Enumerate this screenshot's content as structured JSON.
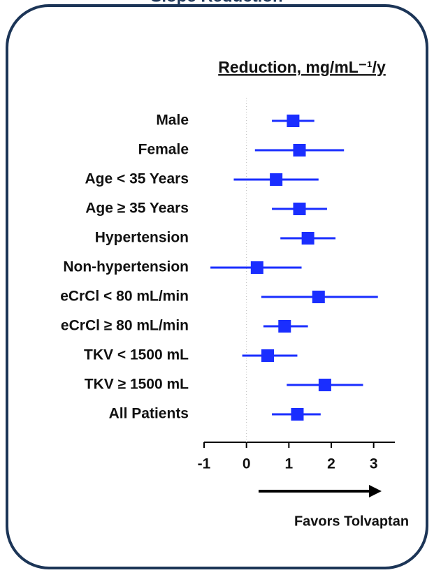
{
  "chart_data": {
    "type": "forest",
    "title": "Slope Reduction",
    "header": "Reduction, mg/mL⁻¹/y",
    "annotation": "Favors Tolvaptan",
    "categories": [
      "Male",
      "Female",
      "Age < 35 Years",
      "Age ≥ 35 Years",
      "Hypertension",
      "Non-hypertension",
      "eCrCl < 80 mL/min",
      "eCrCl ≥ 80 mL/min",
      "TKV < 1500 mL",
      "TKV ≥ 1500 mL",
      "All Patients"
    ],
    "values": [
      1.1,
      1.25,
      0.7,
      1.25,
      1.45,
      0.25,
      1.7,
      0.9,
      0.5,
      1.85,
      1.2
    ],
    "lower": [
      0.6,
      0.2,
      -0.3,
      0.6,
      0.8,
      -0.85,
      0.35,
      0.4,
      -0.1,
      0.95,
      0.6
    ],
    "upper": [
      1.6,
      2.3,
      1.7,
      1.9,
      2.1,
      1.3,
      3.1,
      1.45,
      1.2,
      2.75,
      1.75
    ],
    "color": "#1a2eff",
    "xlim": [
      -1,
      3.5
    ],
    "xticks": [
      -1,
      0,
      1,
      2,
      3
    ],
    "reference_line": 0
  }
}
